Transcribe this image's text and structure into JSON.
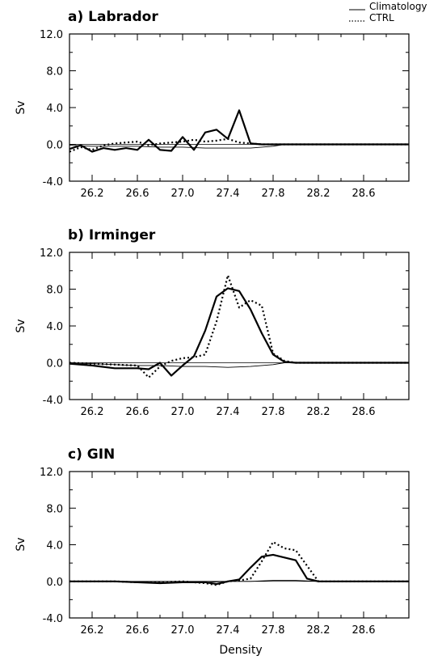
{
  "legend": [
    {
      "label": "Climatology",
      "style": "solid-thin"
    },
    {
      "label": "CTRL",
      "style": "dotted"
    }
  ],
  "xlabel": "Density",
  "chart_data": [
    {
      "type": "line",
      "title": "a) Labrador",
      "ylabel": "Sv",
      "xlim": [
        26.0,
        29.0
      ],
      "ylim": [
        -4.0,
        12.0
      ],
      "xticks": [
        "26.2",
        "26.6",
        "27.0",
        "27.4",
        "27.8",
        "28.2",
        "28.6"
      ],
      "yticks": [
        "12.0",
        "8.0",
        "4.0",
        "0.0",
        "-4.0"
      ],
      "series": [
        {
          "name": "",
          "style": "solid-bold",
          "x": [
            26.0,
            26.1,
            26.2,
            26.3,
            26.4,
            26.5,
            26.6,
            26.7,
            26.8,
            26.9,
            27.0,
            27.1,
            27.2,
            27.3,
            27.4,
            27.5,
            27.6,
            27.7,
            27.8,
            27.9,
            28.0,
            28.1,
            28.2,
            28.3,
            28.4,
            28.5,
            28.6,
            28.7,
            28.8,
            28.9,
            29.0
          ],
          "y": [
            -0.5,
            -0.1,
            -0.8,
            -0.4,
            -0.6,
            -0.4,
            -0.6,
            0.5,
            -0.6,
            -0.7,
            0.8,
            -0.6,
            1.3,
            1.6,
            0.6,
            3.7,
            0.1,
            0.0,
            0.0,
            0.0,
            0.0,
            0.0,
            0.0,
            0.0,
            0.0,
            0.0,
            0.0,
            0.0,
            0.0,
            0.0,
            0.0
          ]
        },
        {
          "name": "Climatology",
          "style": "solid-thin",
          "x": [
            26.0,
            26.2,
            26.4,
            26.6,
            26.8,
            27.0,
            27.2,
            27.4,
            27.6,
            27.8,
            27.9,
            28.0,
            28.2,
            28.4,
            28.6,
            28.8,
            29.0
          ],
          "y": [
            -0.1,
            -0.2,
            -0.2,
            -0.2,
            -0.3,
            -0.3,
            -0.4,
            -0.4,
            -0.4,
            -0.2,
            0.0,
            0.0,
            0.0,
            0.0,
            0.0,
            0.0,
            0.0
          ]
        },
        {
          "name": "CTRL",
          "style": "dotted",
          "x": [
            26.0,
            26.1,
            26.2,
            26.3,
            26.4,
            26.5,
            26.6,
            26.7,
            26.8,
            26.9,
            27.0,
            27.1,
            27.2,
            27.3,
            27.4,
            27.5,
            27.6,
            27.7,
            27.8,
            27.9,
            28.0,
            28.2,
            28.4,
            28.6,
            28.8,
            29.0
          ],
          "y": [
            -0.8,
            -0.3,
            -0.6,
            -0.1,
            0.1,
            0.2,
            0.3,
            -0.1,
            0.1,
            0.2,
            0.3,
            0.5,
            0.3,
            0.4,
            0.6,
            0.2,
            0.1,
            0.0,
            0.0,
            0.0,
            0.0,
            0.0,
            0.0,
            0.0,
            0.0,
            0.0
          ]
        }
      ]
    },
    {
      "type": "line",
      "title": "b) Irminger",
      "ylabel": "Sv",
      "xlim": [
        26.0,
        29.0
      ],
      "ylim": [
        -4.0,
        12.0
      ],
      "xticks": [
        "26.2",
        "26.6",
        "27.0",
        "27.4",
        "27.8",
        "28.2",
        "28.6"
      ],
      "yticks": [
        "12.0",
        "8.0",
        "4.0",
        "0.0",
        "-4.0"
      ],
      "series": [
        {
          "name": "",
          "style": "solid-bold",
          "x": [
            26.0,
            26.2,
            26.4,
            26.6,
            26.7,
            26.8,
            26.9,
            27.0,
            27.1,
            27.2,
            27.3,
            27.4,
            27.5,
            27.6,
            27.7,
            27.8,
            27.9,
            28.0,
            28.2,
            28.4,
            28.6,
            28.8,
            29.0
          ],
          "y": [
            -0.1,
            -0.3,
            -0.6,
            -0.6,
            -0.7,
            0.0,
            -1.4,
            -0.3,
            0.7,
            3.5,
            7.2,
            8.1,
            7.8,
            5.8,
            3.2,
            0.9,
            0.1,
            0.0,
            0.0,
            0.0,
            0.0,
            0.0,
            0.0
          ]
        },
        {
          "name": "Climatology",
          "style": "solid-thin",
          "x": [
            26.0,
            26.2,
            26.4,
            26.6,
            26.8,
            27.0,
            27.2,
            27.4,
            27.6,
            27.8,
            27.9,
            28.0,
            28.2,
            28.4,
            28.6,
            28.8,
            29.0
          ],
          "y": [
            -0.1,
            -0.1,
            -0.2,
            -0.3,
            -0.3,
            -0.4,
            -0.4,
            -0.5,
            -0.4,
            -0.2,
            0.0,
            0.0,
            0.0,
            0.0,
            0.0,
            0.0,
            0.0
          ]
        },
        {
          "name": "CTRL",
          "style": "dotted",
          "x": [
            26.0,
            26.2,
            26.4,
            26.6,
            26.7,
            26.8,
            26.9,
            27.0,
            27.1,
            27.2,
            27.3,
            27.4,
            27.5,
            27.6,
            27.7,
            27.8,
            27.9,
            28.0,
            28.2,
            28.4,
            28.6,
            28.8,
            29.0
          ],
          "y": [
            0.0,
            -0.1,
            -0.2,
            -0.3,
            -1.6,
            -0.4,
            0.2,
            0.5,
            0.6,
            0.9,
            4.5,
            9.5,
            6.0,
            6.8,
            6.2,
            1.0,
            0.2,
            0.0,
            0.0,
            0.0,
            0.0,
            0.0,
            0.0
          ]
        }
      ]
    },
    {
      "type": "line",
      "title": "c) GIN",
      "ylabel": "Sv",
      "xlim": [
        26.0,
        29.0
      ],
      "ylim": [
        -4.0,
        12.0
      ],
      "xticks": [
        "26.2",
        "26.6",
        "27.0",
        "27.4",
        "27.8",
        "28.2",
        "28.6"
      ],
      "yticks": [
        "12.0",
        "8.0",
        "4.0",
        "0.0",
        "-4.0"
      ],
      "series": [
        {
          "name": "",
          "style": "solid-bold",
          "x": [
            26.0,
            26.2,
            26.4,
            26.6,
            26.8,
            27.0,
            27.2,
            27.3,
            27.4,
            27.5,
            27.6,
            27.7,
            27.8,
            27.9,
            28.0,
            28.1,
            28.2,
            28.3,
            28.4,
            28.6,
            28.8,
            29.0
          ],
          "y": [
            0.0,
            0.0,
            0.0,
            -0.1,
            -0.2,
            -0.1,
            -0.1,
            -0.3,
            0.0,
            0.2,
            1.5,
            2.7,
            2.9,
            2.6,
            2.3,
            0.3,
            0.0,
            0.0,
            0.0,
            0.0,
            0.0,
            0.0
          ]
        },
        {
          "name": "Climatology",
          "style": "solid-thin",
          "x": [
            26.0,
            26.4,
            26.8,
            27.0,
            27.2,
            27.4,
            27.6,
            27.8,
            28.0,
            28.2,
            28.4,
            28.6,
            28.8,
            29.0
          ],
          "y": [
            0.0,
            0.0,
            -0.1,
            -0.1,
            -0.1,
            0.0,
            0.0,
            0.1,
            0.1,
            0.0,
            0.0,
            0.0,
            0.0,
            0.0
          ]
        },
        {
          "name": "CTRL",
          "style": "dotted",
          "x": [
            26.0,
            26.2,
            26.4,
            26.6,
            26.8,
            27.0,
            27.2,
            27.3,
            27.4,
            27.5,
            27.6,
            27.7,
            27.8,
            27.9,
            28.0,
            28.1,
            28.2,
            28.3,
            28.4,
            28.6,
            28.8,
            29.0
          ],
          "y": [
            0.0,
            0.0,
            0.0,
            -0.1,
            -0.1,
            0.0,
            -0.2,
            -0.4,
            0.0,
            0.1,
            0.3,
            2.2,
            4.3,
            3.6,
            3.4,
            1.7,
            0.0,
            0.0,
            0.0,
            0.0,
            0.0,
            0.0
          ]
        }
      ]
    }
  ]
}
